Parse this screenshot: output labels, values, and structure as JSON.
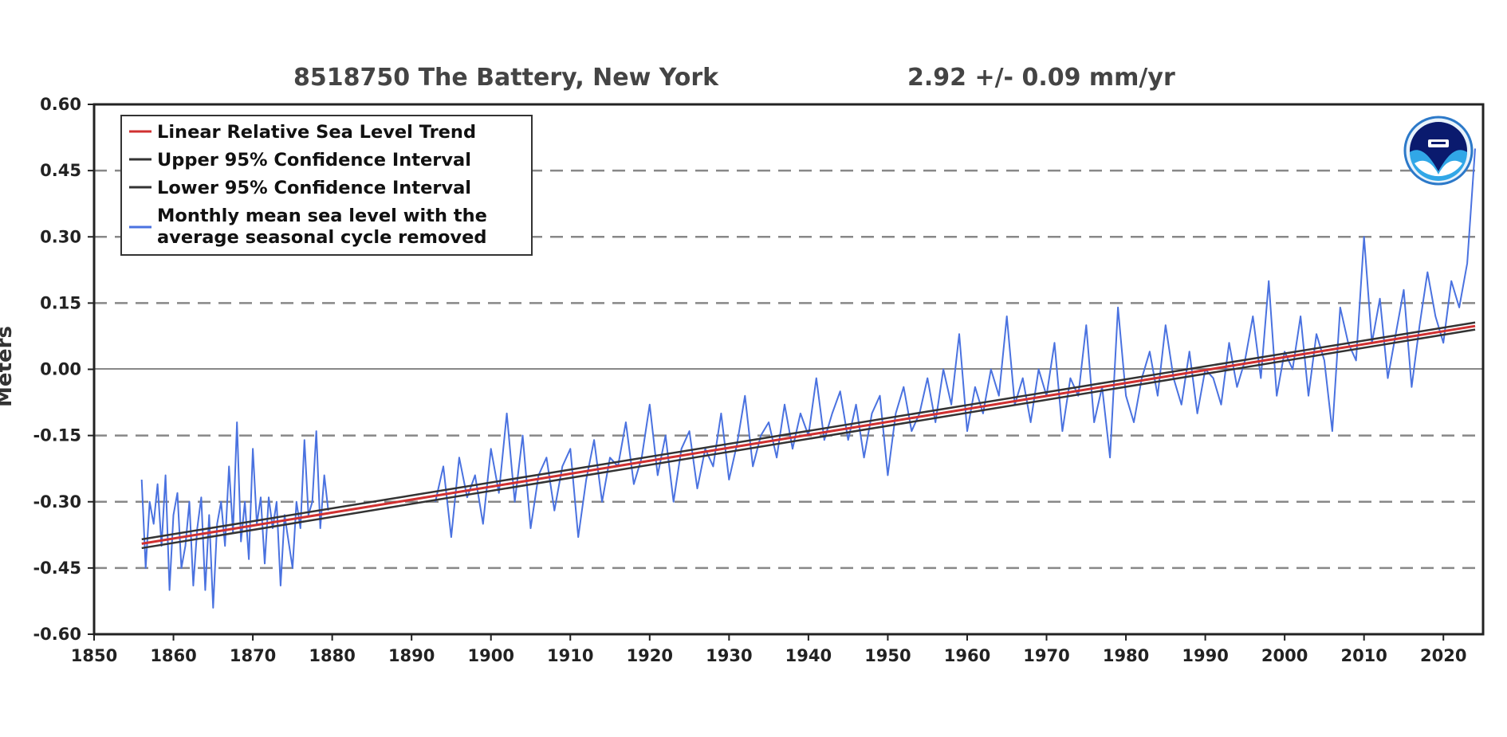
{
  "chart_data": {
    "type": "line",
    "title": "8518750 The Battery, New York",
    "subtitle": "2.92 +/-  0.09 mm/yr",
    "ylabel": "Meters",
    "xlabel": "",
    "xlim": [
      1850,
      2025
    ],
    "ylim": [
      -0.6,
      0.6
    ],
    "x_ticks": [
      "1850",
      "1860",
      "1870",
      "1880",
      "1890",
      "1900",
      "1910",
      "1920",
      "1930",
      "1940",
      "1950",
      "1960",
      "1970",
      "1980",
      "1990",
      "2000",
      "2010",
      "2020"
    ],
    "y_ticks": [
      "0.60",
      "0.45",
      "0.30",
      "0.15",
      "0.00",
      "-0.15",
      "-0.30",
      "-0.45",
      "-0.60"
    ],
    "grid": "horizontal dashed",
    "legend_position": "top-left",
    "series": [
      {
        "name": "Linear Relative Sea Level Trend",
        "color": "#d03030",
        "x": [
          1856,
          2024
        ],
        "y": [
          -0.395,
          0.098
        ]
      },
      {
        "name": "Upper 95% Confidence Interval",
        "color": "#333333",
        "x": [
          1856,
          2024
        ],
        "y": [
          -0.385,
          0.106
        ]
      },
      {
        "name": "Lower 95% Confidence Interval",
        "color": "#333333",
        "x": [
          1856,
          2024
        ],
        "y": [
          -0.405,
          0.09
        ]
      },
      {
        "name": "Monthly mean sea level with the average seasonal cycle removed",
        "color": "#4a72e0",
        "segments": [
          {
            "x": [
              1856.0,
              1856.5,
              1857.0,
              1857.5,
              1858.0,
              1858.5,
              1859.0,
              1859.5,
              1860.0,
              1860.5,
              1861.0,
              1861.5,
              1862.0,
              1862.5,
              1863.0,
              1863.5,
              1864.0,
              1864.5,
              1865.0,
              1865.5,
              1866.0,
              1866.5,
              1867.0,
              1867.5,
              1868.0,
              1868.5,
              1869.0,
              1869.5,
              1870.0,
              1870.5,
              1871.0,
              1871.5,
              1872.0,
              1872.5,
              1873.0,
              1873.5,
              1874.0,
              1874.5,
              1875.0,
              1875.5,
              1876.0,
              1876.5,
              1877.0,
              1877.5,
              1878.0,
              1878.5,
              1879.0,
              1879.5
            ],
            "y": [
              -0.25,
              -0.45,
              -0.3,
              -0.35,
              -0.26,
              -0.4,
              -0.24,
              -0.5,
              -0.33,
              -0.28,
              -0.45,
              -0.4,
              -0.3,
              -0.49,
              -0.36,
              -0.29,
              -0.5,
              -0.33,
              -0.54,
              -0.35,
              -0.3,
              -0.4,
              -0.22,
              -0.37,
              -0.12,
              -0.39,
              -0.3,
              -0.43,
              -0.18,
              -0.35,
              -0.29,
              -0.44,
              -0.29,
              -0.36,
              -0.3,
              -0.49,
              -0.33,
              -0.39,
              -0.45,
              -0.3,
              -0.36,
              -0.16,
              -0.33,
              -0.3,
              -0.14,
              -0.36,
              -0.24,
              -0.32
            ]
          },
          {
            "x": [
              1893,
              1894,
              1895,
              1896,
              1897,
              1898,
              1899,
              1900,
              1901,
              1902,
              1903,
              1904,
              1905,
              1906,
              1907,
              1908,
              1909,
              1910,
              1911,
              1912,
              1913,
              1914,
              1915,
              1916,
              1917,
              1918,
              1919,
              1920,
              1921,
              1922,
              1923,
              1924,
              1925,
              1926,
              1927,
              1928,
              1929,
              1930,
              1931,
              1932,
              1933,
              1934,
              1935,
              1936,
              1937,
              1938,
              1939,
              1940,
              1941,
              1942,
              1943,
              1944,
              1945,
              1946,
              1947,
              1948,
              1949,
              1950,
              1951,
              1952,
              1953,
              1954,
              1955,
              1956,
              1957,
              1958,
              1959,
              1960,
              1961,
              1962,
              1963,
              1964,
              1965,
              1966,
              1967,
              1968,
              1969,
              1970,
              1971,
              1972,
              1973,
              1974,
              1975,
              1976,
              1977,
              1978,
              1979,
              1980,
              1981,
              1982,
              1983,
              1984,
              1985,
              1986,
              1987,
              1988,
              1989,
              1990,
              1991,
              1992,
              1993,
              1994,
              1995,
              1996,
              1997,
              1998,
              1999,
              2000,
              2001,
              2002,
              2003,
              2004,
              2005,
              2006,
              2007,
              2008,
              2009,
              2010,
              2011,
              2012,
              2013,
              2014,
              2015,
              2016,
              2017,
              2018,
              2019,
              2020,
              2021,
              2022,
              2023,
              2024
            ],
            "y": [
              -0.3,
              -0.22,
              -0.38,
              -0.2,
              -0.29,
              -0.24,
              -0.35,
              -0.18,
              -0.28,
              -0.1,
              -0.3,
              -0.15,
              -0.36,
              -0.24,
              -0.2,
              -0.32,
              -0.22,
              -0.18,
              -0.38,
              -0.25,
              -0.16,
              -0.3,
              -0.2,
              -0.22,
              -0.12,
              -0.26,
              -0.2,
              -0.08,
              -0.24,
              -0.15,
              -0.3,
              -0.18,
              -0.14,
              -0.27,
              -0.18,
              -0.22,
              -0.1,
              -0.25,
              -0.17,
              -0.06,
              -0.22,
              -0.15,
              -0.12,
              -0.2,
              -0.08,
              -0.18,
              -0.1,
              -0.15,
              -0.02,
              -0.16,
              -0.1,
              -0.05,
              -0.16,
              -0.08,
              -0.2,
              -0.1,
              -0.06,
              -0.24,
              -0.1,
              -0.04,
              -0.14,
              -0.1,
              -0.02,
              -0.12,
              0.0,
              -0.08,
              0.08,
              -0.14,
              -0.04,
              -0.1,
              0.0,
              -0.06,
              0.12,
              -0.08,
              -0.02,
              -0.12,
              0.0,
              -0.06,
              0.06,
              -0.14,
              -0.02,
              -0.06,
              0.1,
              -0.12,
              -0.04,
              -0.2,
              0.14,
              -0.06,
              -0.12,
              -0.02,
              0.04,
              -0.06,
              0.1,
              -0.02,
              -0.08,
              0.04,
              -0.1,
              0.0,
              -0.02,
              -0.08,
              0.06,
              -0.04,
              0.02,
              0.12,
              -0.02,
              0.2,
              -0.06,
              0.04,
              0.0,
              0.12,
              -0.06,
              0.08,
              0.02,
              -0.14,
              0.14,
              0.06,
              0.02,
              0.3,
              0.06,
              0.16,
              -0.02,
              0.08,
              0.18,
              -0.04,
              0.1,
              0.22,
              0.12,
              0.06,
              0.2,
              0.14,
              0.24,
              0.5
            ]
          }
        ]
      }
    ],
    "annotations": [
      "NOAA logo"
    ]
  }
}
